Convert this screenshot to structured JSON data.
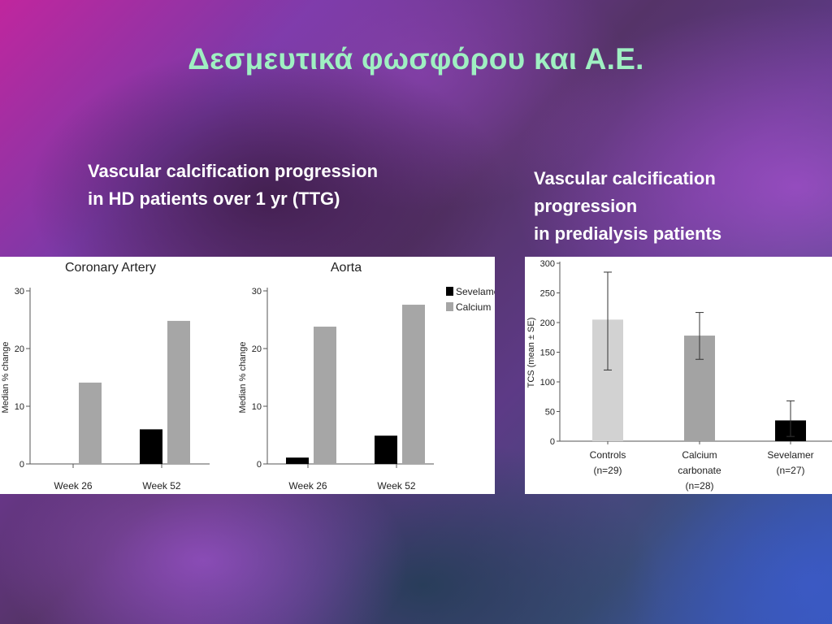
{
  "slide": {
    "title": "Δεσμευτικά φωσφόρου και Α.Ε.",
    "left_caption": [
      "Vascular calcification progression",
      "in HD patients over 1 yr (TTG)"
    ],
    "right_caption": [
      "Vascular calcification",
      "progression",
      "in predialysis patients"
    ]
  },
  "colors": {
    "title": "#9ff0c2",
    "sevelamer": "#000000",
    "calcium": "#a6a6a6",
    "controls": "#d2d2d2",
    "calcium_carbonate": "#a3a3a3",
    "sevelamer_tcs": "#000000"
  },
  "chart_data": [
    {
      "type": "bar",
      "title": "Coronary Artery",
      "ylabel": "Median % change",
      "categories": [
        "Week 26",
        "Week 52"
      ],
      "yticks": [
        0,
        10,
        20,
        30
      ],
      "ylim": [
        0,
        30
      ],
      "series": [
        {
          "name": "Sevelamer",
          "values": [
            0,
            6
          ]
        },
        {
          "name": "Calcium",
          "values": [
            14.1,
            24.8
          ]
        }
      ]
    },
    {
      "type": "bar",
      "title": "Aorta",
      "ylabel": "Median % change",
      "categories": [
        "Week 26",
        "Week 52"
      ],
      "yticks": [
        0,
        10,
        20,
        30
      ],
      "ylim": [
        0,
        30
      ],
      "legend": {
        "position": "top-right",
        "entries": [
          "Sevelamer",
          "Calcium"
        ]
      },
      "series": [
        {
          "name": "Sevelamer",
          "values": [
            1.1,
            4.9
          ]
        },
        {
          "name": "Calcium",
          "values": [
            23.8,
            27.6
          ]
        }
      ]
    },
    {
      "type": "bar",
      "title": "",
      "ylabel": "TCS (mean ± SE)",
      "categories": [
        [
          "Controls",
          "(n=29)"
        ],
        [
          "Calcium",
          "carbonate",
          "(n=28)"
        ],
        [
          "Sevelamer",
          "(n=27)"
        ]
      ],
      "yticks": [
        0,
        50,
        100,
        150,
        200,
        250,
        300
      ],
      "ylim": [
        0,
        300
      ],
      "values": [
        205,
        178,
        35
      ],
      "errors": [
        [
          120,
          285
        ],
        [
          138,
          217
        ],
        [
          8,
          68
        ]
      ]
    }
  ]
}
